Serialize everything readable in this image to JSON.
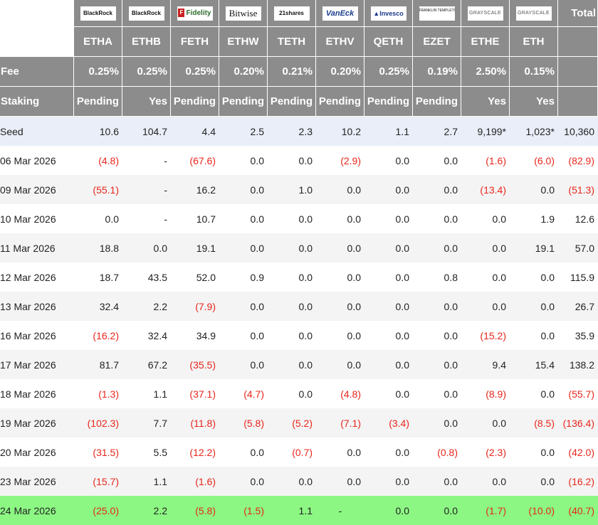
{
  "columns": [
    {
      "issuer": "BlackRock",
      "ticker": "ETHA",
      "fee": "0.25%",
      "staking": "Pending"
    },
    {
      "issuer": "BlackRock",
      "ticker": "ETHB",
      "fee": "0.25%",
      "staking": "Yes"
    },
    {
      "issuer": "Fidelity",
      "ticker": "FETH",
      "fee": "0.25%",
      "staking": "Pending"
    },
    {
      "issuer": "Bitwise",
      "ticker": "ETHW",
      "fee": "0.20%",
      "staking": "Pending"
    },
    {
      "issuer": "21shares",
      "ticker": "TETH",
      "fee": "0.21%",
      "staking": "Pending"
    },
    {
      "issuer": "VanEck",
      "ticker": "ETHV",
      "fee": "0.20%",
      "staking": "Pending"
    },
    {
      "issuer": "Invesco",
      "ticker": "QETH",
      "fee": "0.25%",
      "staking": "Pending"
    },
    {
      "issuer": "FRANKLIN TEMPLETON",
      "ticker": "EZET",
      "fee": "0.19%",
      "staking": "Pending"
    },
    {
      "issuer": "GRAYSCALE",
      "ticker": "ETHE",
      "fee": "2.50%",
      "staking": "Yes"
    },
    {
      "issuer": "GRAYSCALE",
      "ticker": "ETH",
      "fee": "0.15%",
      "staking": "Yes"
    }
  ],
  "total_header": "Total",
  "fee_label": "Fee",
  "staking_label": "Staking",
  "rows": [
    {
      "date": "Seed",
      "values": [
        "10.6",
        "104.7",
        "4.4",
        "2.5",
        "2.3",
        "10.2",
        "1.1",
        "2.7",
        "9,199*",
        "1,023*",
        "10,360"
      ]
    },
    {
      "date": "06 Mar 2026",
      "values": [
        "(4.8)",
        "-",
        "(67.6)",
        "0.0",
        "0.0",
        "(2.9)",
        "0.0",
        "0.0",
        "(1.6)",
        "(6.0)",
        "(82.9)"
      ]
    },
    {
      "date": "09 Mar 2026",
      "values": [
        "(55.1)",
        "-",
        "16.2",
        "0.0",
        "1.0",
        "0.0",
        "0.0",
        "0.0",
        "(13.4)",
        "0.0",
        "(51.3)"
      ]
    },
    {
      "date": "10 Mar 2026",
      "values": [
        "0.0",
        "-",
        "10.7",
        "0.0",
        "0.0",
        "0.0",
        "0.0",
        "0.0",
        "0.0",
        "1.9",
        "12.6"
      ]
    },
    {
      "date": "11 Mar 2026",
      "values": [
        "18.8",
        "0.0",
        "19.1",
        "0.0",
        "0.0",
        "0.0",
        "0.0",
        "0.0",
        "0.0",
        "19.1",
        "57.0"
      ]
    },
    {
      "date": "12 Mar 2026",
      "values": [
        "18.7",
        "43.5",
        "52.0",
        "0.9",
        "0.0",
        "0.0",
        "0.0",
        "0.8",
        "0.0",
        "0.0",
        "115.9"
      ]
    },
    {
      "date": "13 Mar 2026",
      "values": [
        "32.4",
        "2.2",
        "(7.9)",
        "0.0",
        "0.0",
        "0.0",
        "0.0",
        "0.0",
        "0.0",
        "0.0",
        "26.7"
      ]
    },
    {
      "date": "16 Mar 2026",
      "values": [
        "(16.2)",
        "32.4",
        "34.9",
        "0.0",
        "0.0",
        "0.0",
        "0.0",
        "0.0",
        "(15.2)",
        "0.0",
        "35.9"
      ]
    },
    {
      "date": "17 Mar 2026",
      "values": [
        "81.7",
        "67.2",
        "(35.5)",
        "0.0",
        "0.0",
        "0.0",
        "0.0",
        "0.0",
        "9.4",
        "15.4",
        "138.2"
      ]
    },
    {
      "date": "18 Mar 2026",
      "values": [
        "(1.3)",
        "1.1",
        "(37.1)",
        "(4.7)",
        "0.0",
        "(4.8)",
        "0.0",
        "0.0",
        "(8.9)",
        "0.0",
        "(55.7)"
      ]
    },
    {
      "date": "19 Mar 2026",
      "values": [
        "(102.3)",
        "7.7",
        "(11.8)",
        "(5.8)",
        "(5.2)",
        "(7.1)",
        "(3.4)",
        "0.0",
        "0.0",
        "(8.5)",
        "(136.4)"
      ]
    },
    {
      "date": "20 Mar 2026",
      "values": [
        "(31.5)",
        "5.5",
        "(12.2)",
        "0.0",
        "(0.7)",
        "0.0",
        "0.0",
        "(0.8)",
        "(2.3)",
        "0.0",
        "(42.0)"
      ]
    },
    {
      "date": "23 Mar 2026",
      "values": [
        "(15.7)",
        "1.1",
        "(1.6)",
        "0.0",
        "0.0",
        "0.0",
        "0.0",
        "0.0",
        "0.0",
        "0.0",
        "(16.2)"
      ]
    },
    {
      "date": "24 Mar 2026",
      "values": [
        "(25.0)",
        "2.2",
        "(5.8)",
        "(1.5)",
        "1.1",
        "-",
        "0.0",
        "0.0",
        "(1.7)",
        "(10.0)",
        "(40.7)"
      ]
    }
  ],
  "colors": {
    "header_bg": "#8c8c8c",
    "seed_row_bg": "#e9eef8",
    "stripe_bg": "#f4f4f4",
    "latest_row_bg": "#8cf783",
    "negative_text": "#e8251b"
  }
}
